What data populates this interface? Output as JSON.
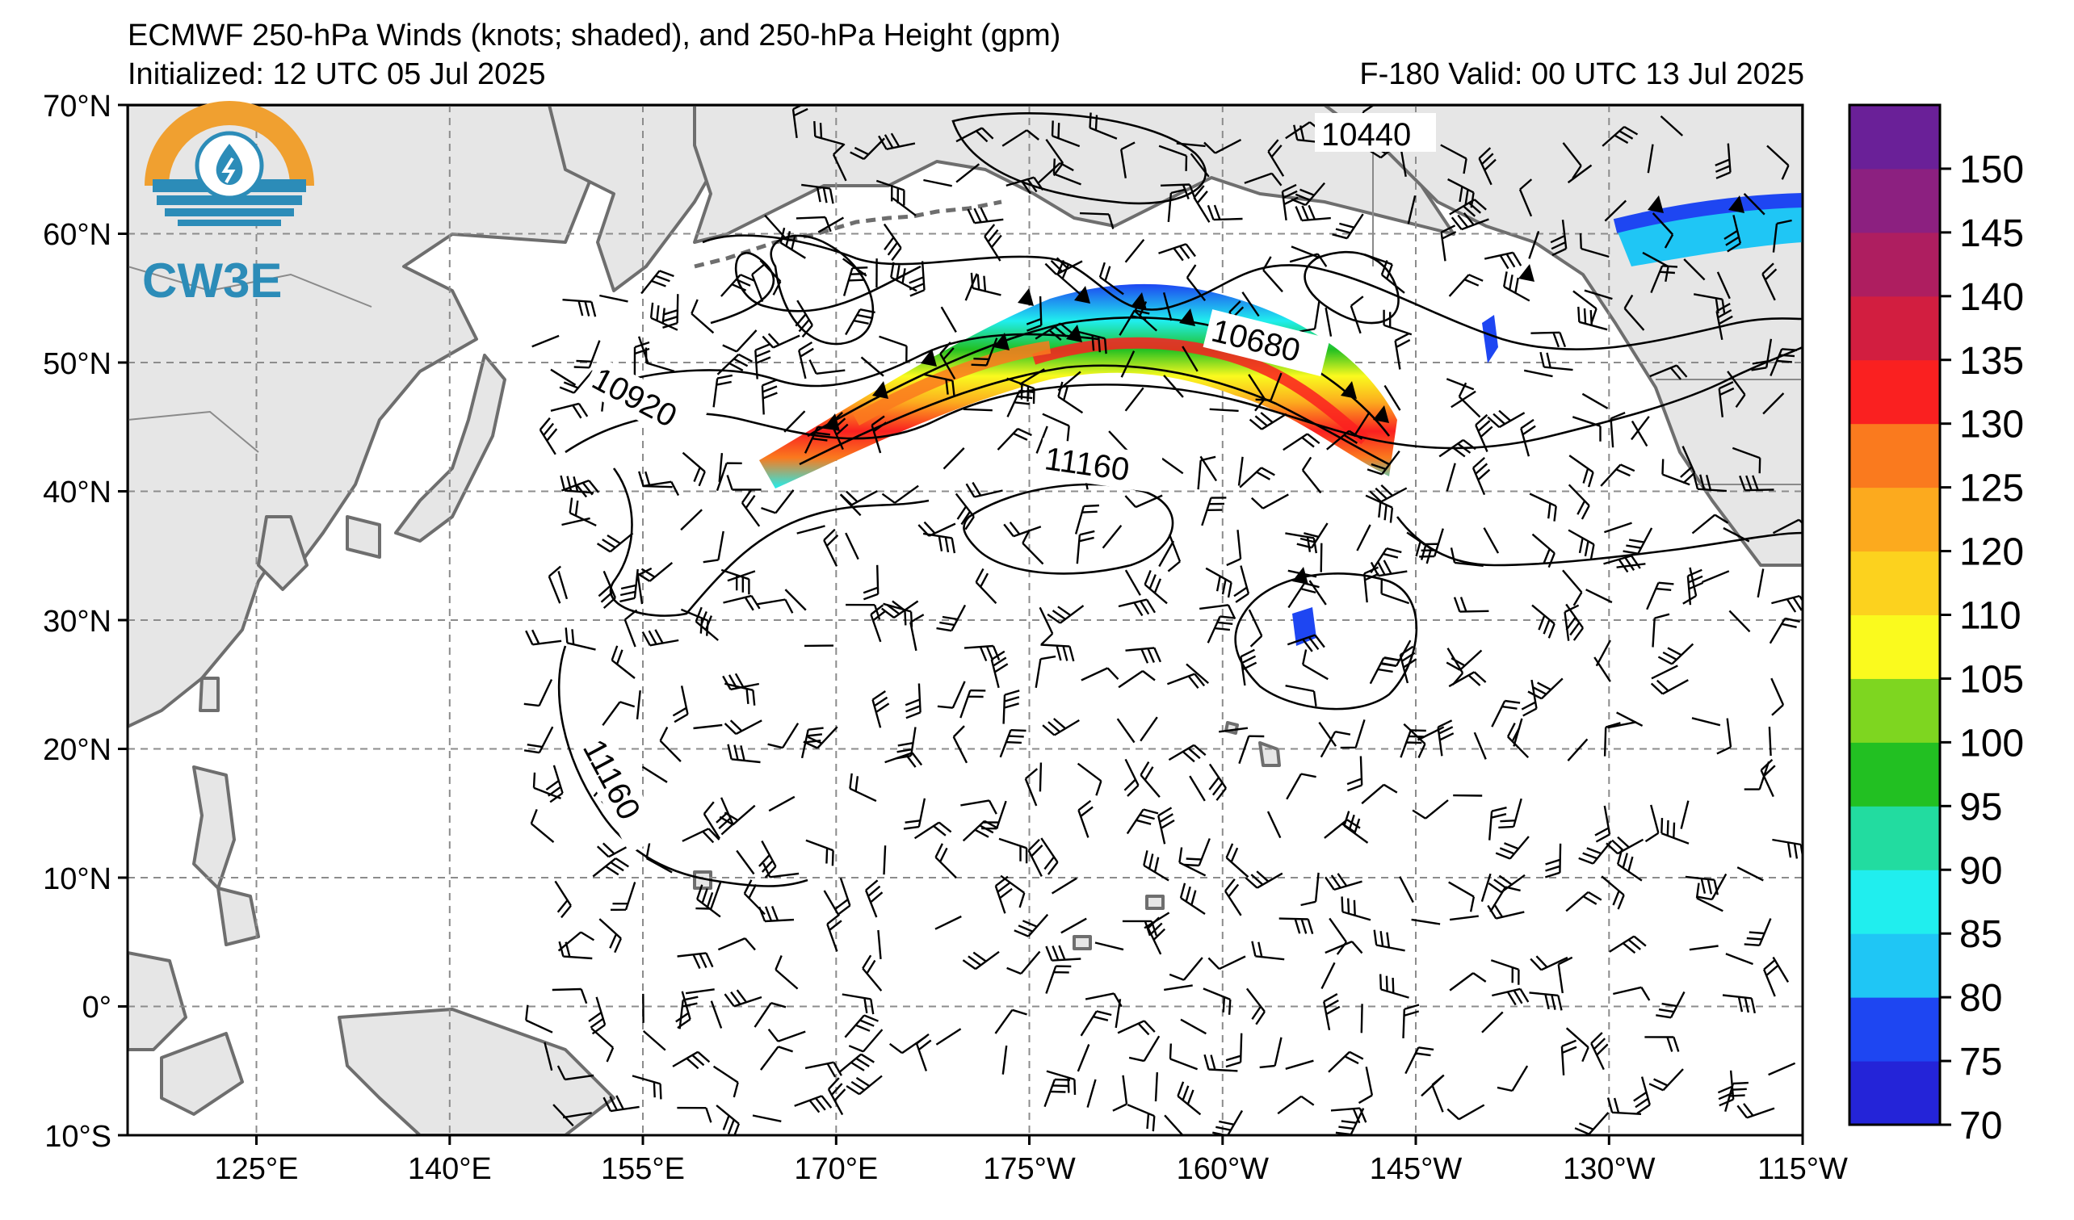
{
  "header": {
    "title": "ECMWF 250-hPa Winds (knots; shaded), and 250-hPa Height (gpm)",
    "initialized": "Initialized: 12 UTC 05 Jul 2025",
    "valid": "F-180  Valid: 00 UTC 13 Jul 2025"
  },
  "logo": {
    "text": "CW3E",
    "colors": {
      "ring": "#f0a030",
      "water": "#2c8cb8"
    }
  },
  "map": {
    "lon_range": [
      "119°E",
      "115°W"
    ],
    "lat_range": [
      "10°S",
      "70°N"
    ],
    "lat_ticks": [
      "70°N",
      "60°N",
      "50°N",
      "40°N",
      "30°N",
      "20°N",
      "10°N",
      "0°",
      "10°S"
    ],
    "lon_ticks": [
      "125°E",
      "140°E",
      "155°E",
      "170°E",
      "175°W",
      "160°W",
      "145°W",
      "130°W",
      "115°W"
    ],
    "gridlines": "dashed",
    "land_color": "#e6e6e6",
    "coast_color": "#6e6e6e"
  },
  "contours": {
    "labels": [
      "10440",
      "10680",
      "10920",
      "11160",
      "11160"
    ]
  },
  "colorbar": {
    "ticks": [
      "70",
      "75",
      "80",
      "85",
      "90",
      "95",
      "100",
      "105",
      "110",
      "120",
      "125",
      "130",
      "135",
      "140",
      "145",
      "150"
    ],
    "bins": [
      {
        "from": 70,
        "to": 75,
        "color": "#2424d8"
      },
      {
        "from": 75,
        "to": 80,
        "color": "#1e46f2"
      },
      {
        "from": 80,
        "to": 85,
        "color": "#1fc6f5"
      },
      {
        "from": 85,
        "to": 90,
        "color": "#20eeee"
      },
      {
        "from": 90,
        "to": 95,
        "color": "#22dca0"
      },
      {
        "from": 95,
        "to": 100,
        "color": "#22c022"
      },
      {
        "from": 100,
        "to": 105,
        "color": "#7ed620"
      },
      {
        "from": 105,
        "to": 110,
        "color": "#fafa1e"
      },
      {
        "from": 110,
        "to": 120,
        "color": "#fcd21e"
      },
      {
        "from": 120,
        "to": 125,
        "color": "#fcaa1e"
      },
      {
        "from": 125,
        "to": 130,
        "color": "#fa7a1e"
      },
      {
        "from": 130,
        "to": 135,
        "color": "#fa2020"
      },
      {
        "from": 135,
        "to": 140,
        "color": "#d21e40"
      },
      {
        "from": 140,
        "to": 145,
        "color": "#ae1e60"
      },
      {
        "from": 145,
        "to": 150,
        "color": "#8c2080"
      },
      {
        "from": 150,
        "to": 155,
        "color": "#6a2098"
      }
    ]
  }
}
